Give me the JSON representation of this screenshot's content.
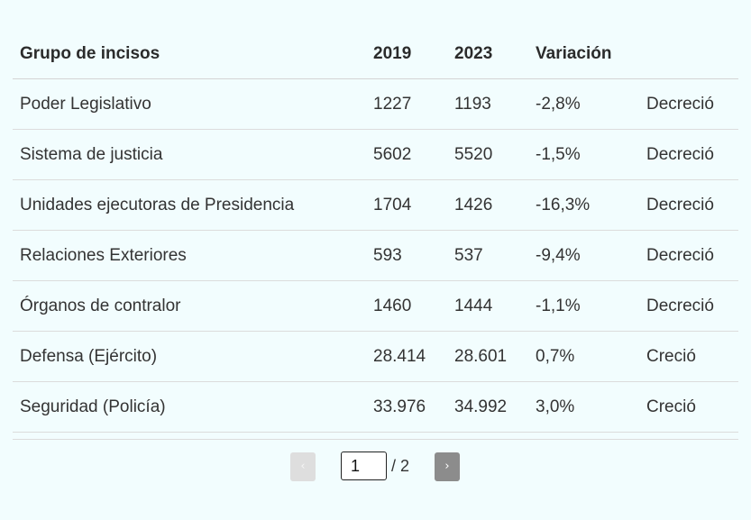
{
  "table": {
    "headers": [
      "Grupo de incisos",
      "2019",
      "2023",
      "Variación",
      ""
    ],
    "rows": [
      [
        "Poder Legislativo",
        "1227",
        "1193",
        "-2,8%",
        "Decreció"
      ],
      [
        "Sistema de justicia",
        "5602",
        "5520",
        "-1,5%",
        "Decreció"
      ],
      [
        "Unidades ejecutoras de Presidencia",
        "1704",
        "1426",
        "-16,3%",
        "Decreció"
      ],
      [
        "Relaciones Exteriores",
        "593",
        "537",
        "-9,4%",
        "Decreció"
      ],
      [
        "Órganos de contralor",
        "1460",
        "1444",
        "-1,1%",
        "Decreció"
      ],
      [
        "Defensa (Ejército)",
        "28.414",
        "28.601",
        "0,7%",
        "Creció"
      ],
      [
        "Seguridad (Policía)",
        "33.976",
        "34.992",
        "3,0%",
        "Creció"
      ]
    ]
  },
  "pagination": {
    "prev_label": "‹",
    "next_label": "›",
    "current_page": "1",
    "total_label": "/ 2"
  }
}
